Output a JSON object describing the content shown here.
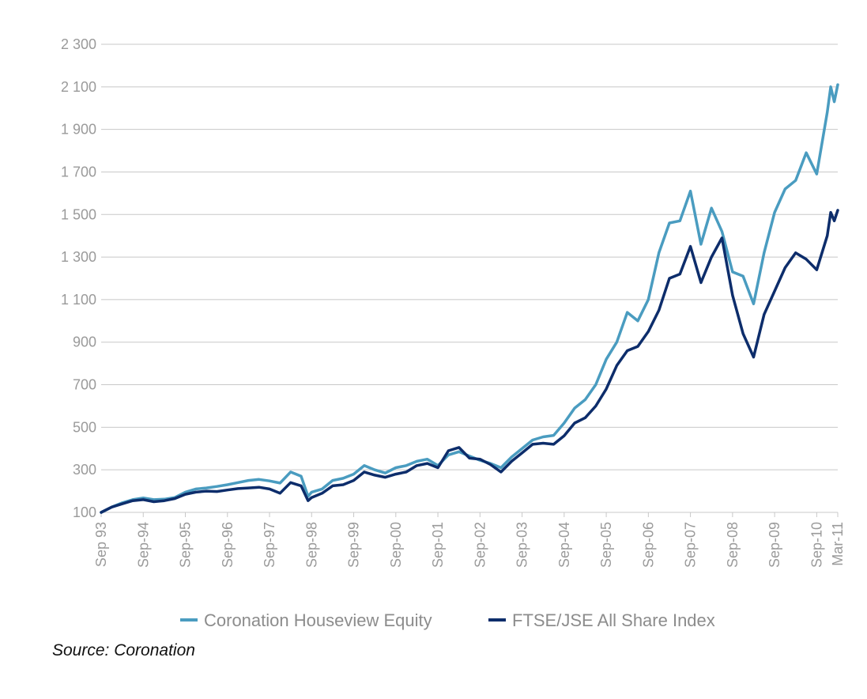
{
  "source_note": "Source: Coronation",
  "colors": {
    "grid": "#c8c8c8",
    "axis_text": "#9a9a9a",
    "background": "#ffffff"
  },
  "chart_data": {
    "type": "line",
    "title": "",
    "xlabel": "",
    "ylabel": "",
    "ylim": [
      100,
      2300
    ],
    "yticks": [
      100,
      300,
      500,
      700,
      900,
      1100,
      1300,
      1500,
      1700,
      1900,
      2100,
      2300
    ],
    "ytick_labels": [
      "100",
      "300",
      "500",
      "700",
      "900",
      "1 100",
      "1 300",
      "1 500",
      "1 700",
      "1 900",
      "2 100",
      "2 300"
    ],
    "xlim": [
      "1993-09",
      "2011-03"
    ],
    "xticks": [
      "1993-09",
      "1994-09",
      "1995-09",
      "1996-09",
      "1997-09",
      "1998-09",
      "1999-09",
      "2000-09",
      "2001-09",
      "2002-09",
      "2003-09",
      "2004-09",
      "2005-09",
      "2006-09",
      "2007-09",
      "2008-09",
      "2009-09",
      "2010-09",
      "2011-03"
    ],
    "xtick_labels": [
      "Sep 93",
      "Sep-94",
      "Sep-95",
      "Sep-96",
      "Sep-97",
      "Sep-98",
      "Sep-99",
      "Sep-00",
      "Sep-01",
      "Sep-02",
      "Sep-03",
      "Sep-04",
      "Sep-05",
      "Sep-06",
      "Sep-07",
      "Sep-08",
      "Sep-09",
      "Sep-10",
      "Mar-11"
    ],
    "grid": "horizontal",
    "legend_position": "bottom",
    "series": [
      {
        "name": "Coronation Houseview Equity",
        "color": "#4a9cc0",
        "points": [
          [
            "1993-09",
            100
          ],
          [
            "1993-12",
            125
          ],
          [
            "1994-03",
            145
          ],
          [
            "1994-06",
            160
          ],
          [
            "1994-09",
            168
          ],
          [
            "1994-12",
            160
          ],
          [
            "1995-03",
            162
          ],
          [
            "1995-06",
            170
          ],
          [
            "1995-09",
            195
          ],
          [
            "1995-12",
            210
          ],
          [
            "1996-03",
            215
          ],
          [
            "1996-06",
            222
          ],
          [
            "1996-09",
            230
          ],
          [
            "1996-12",
            240
          ],
          [
            "1997-03",
            250
          ],
          [
            "1997-06",
            255
          ],
          [
            "1997-09",
            248
          ],
          [
            "1997-12",
            238
          ],
          [
            "1998-03",
            290
          ],
          [
            "1998-06",
            270
          ],
          [
            "1998-08",
            175
          ],
          [
            "1998-09",
            195
          ],
          [
            "1998-12",
            210
          ],
          [
            "1999-03",
            250
          ],
          [
            "1999-06",
            260
          ],
          [
            "1999-09",
            280
          ],
          [
            "1999-12",
            320
          ],
          [
            "2000-03",
            300
          ],
          [
            "2000-06",
            285
          ],
          [
            "2000-09",
            310
          ],
          [
            "2000-12",
            320
          ],
          [
            "2001-03",
            340
          ],
          [
            "2001-06",
            350
          ],
          [
            "2001-09",
            320
          ],
          [
            "2001-12",
            370
          ],
          [
            "2002-03",
            385
          ],
          [
            "2002-06",
            365
          ],
          [
            "2002-09",
            345
          ],
          [
            "2002-12",
            330
          ],
          [
            "2003-03",
            310
          ],
          [
            "2003-06",
            360
          ],
          [
            "2003-09",
            400
          ],
          [
            "2003-12",
            440
          ],
          [
            "2004-03",
            455
          ],
          [
            "2004-06",
            462
          ],
          [
            "2004-09",
            520
          ],
          [
            "2004-12",
            590
          ],
          [
            "2005-03",
            630
          ],
          [
            "2005-06",
            700
          ],
          [
            "2005-09",
            820
          ],
          [
            "2005-12",
            900
          ],
          [
            "2006-03",
            1040
          ],
          [
            "2006-06",
            1000
          ],
          [
            "2006-09",
            1100
          ],
          [
            "2006-12",
            1320
          ],
          [
            "2007-03",
            1460
          ],
          [
            "2007-06",
            1470
          ],
          [
            "2007-09",
            1610
          ],
          [
            "2007-12",
            1360
          ],
          [
            "2008-03",
            1530
          ],
          [
            "2008-06",
            1420
          ],
          [
            "2008-09",
            1230
          ],
          [
            "2008-12",
            1210
          ],
          [
            "2009-03",
            1080
          ],
          [
            "2009-06",
            1320
          ],
          [
            "2009-09",
            1510
          ],
          [
            "2009-12",
            1620
          ],
          [
            "2010-03",
            1660
          ],
          [
            "2010-06",
            1790
          ],
          [
            "2010-09",
            1690
          ],
          [
            "2010-12",
            1980
          ],
          [
            "2011-01",
            2100
          ],
          [
            "2011-02",
            2030
          ],
          [
            "2011-03",
            2110
          ]
        ]
      },
      {
        "name": "FTSE/JSE All Share Index",
        "color": "#0d2d6b",
        "points": [
          [
            "1993-09",
            100
          ],
          [
            "1993-12",
            125
          ],
          [
            "1994-03",
            140
          ],
          [
            "1994-06",
            155
          ],
          [
            "1994-09",
            160
          ],
          [
            "1994-12",
            150
          ],
          [
            "1995-03",
            155
          ],
          [
            "1995-06",
            165
          ],
          [
            "1995-09",
            185
          ],
          [
            "1995-12",
            195
          ],
          [
            "1996-03",
            200
          ],
          [
            "1996-06",
            198
          ],
          [
            "1996-09",
            205
          ],
          [
            "1996-12",
            212
          ],
          [
            "1997-03",
            215
          ],
          [
            "1997-06",
            218
          ],
          [
            "1997-09",
            210
          ],
          [
            "1997-12",
            190
          ],
          [
            "1998-03",
            240
          ],
          [
            "1998-06",
            225
          ],
          [
            "1998-08",
            155
          ],
          [
            "1998-09",
            170
          ],
          [
            "1998-12",
            190
          ],
          [
            "1999-03",
            225
          ],
          [
            "1999-06",
            230
          ],
          [
            "1999-09",
            250
          ],
          [
            "1999-12",
            290
          ],
          [
            "2000-03",
            275
          ],
          [
            "2000-06",
            265
          ],
          [
            "2000-09",
            280
          ],
          [
            "2000-12",
            290
          ],
          [
            "2001-03",
            320
          ],
          [
            "2001-06",
            330
          ],
          [
            "2001-09",
            310
          ],
          [
            "2001-12",
            390
          ],
          [
            "2002-03",
            405
          ],
          [
            "2002-06",
            355
          ],
          [
            "2002-09",
            350
          ],
          [
            "2002-12",
            325
          ],
          [
            "2003-03",
            290
          ],
          [
            "2003-06",
            340
          ],
          [
            "2003-09",
            380
          ],
          [
            "2003-12",
            420
          ],
          [
            "2004-03",
            425
          ],
          [
            "2004-06",
            420
          ],
          [
            "2004-09",
            460
          ],
          [
            "2004-12",
            520
          ],
          [
            "2005-03",
            545
          ],
          [
            "2005-06",
            600
          ],
          [
            "2005-09",
            680
          ],
          [
            "2005-12",
            790
          ],
          [
            "2006-03",
            860
          ],
          [
            "2006-06",
            880
          ],
          [
            "2006-09",
            950
          ],
          [
            "2006-12",
            1050
          ],
          [
            "2007-03",
            1200
          ],
          [
            "2007-06",
            1220
          ],
          [
            "2007-09",
            1350
          ],
          [
            "2007-12",
            1180
          ],
          [
            "2008-03",
            1300
          ],
          [
            "2008-06",
            1390
          ],
          [
            "2008-09",
            1120
          ],
          [
            "2008-12",
            940
          ],
          [
            "2009-03",
            830
          ],
          [
            "2009-06",
            1030
          ],
          [
            "2009-09",
            1140
          ],
          [
            "2009-12",
            1250
          ],
          [
            "2010-03",
            1320
          ],
          [
            "2010-06",
            1290
          ],
          [
            "2010-09",
            1240
          ],
          [
            "2010-12",
            1400
          ],
          [
            "2011-01",
            1510
          ],
          [
            "2011-02",
            1470
          ],
          [
            "2011-03",
            1520
          ]
        ]
      }
    ]
  }
}
